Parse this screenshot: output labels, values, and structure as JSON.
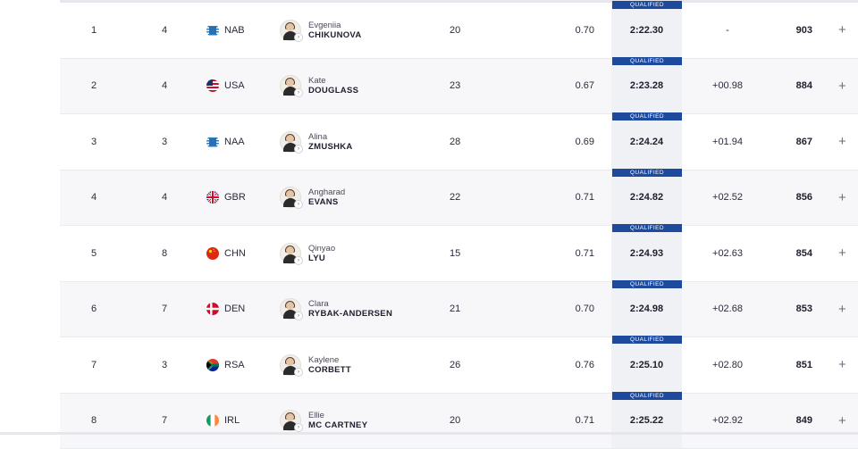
{
  "table": {
    "qualified_label": "QUALIFIED",
    "rows": [
      {
        "rank": "1",
        "lane": "4",
        "country": "NAB",
        "flag": "nab-flag-icon",
        "first": "Evgeniia",
        "last": "CHIKUNOVA",
        "age": "20",
        "rt": "0.70",
        "time": "2:22.30",
        "behind": "-",
        "points": "903"
      },
      {
        "rank": "2",
        "lane": "4",
        "country": "USA",
        "flag": "usa-flag-icon",
        "first": "Kate",
        "last": "DOUGLASS",
        "age": "23",
        "rt": "0.67",
        "time": "2:23.28",
        "behind": "+00.98",
        "points": "884"
      },
      {
        "rank": "3",
        "lane": "3",
        "country": "NAA",
        "flag": "naa-flag-icon",
        "first": "Alina",
        "last": "ZMUSHKA",
        "age": "28",
        "rt": "0.69",
        "time": "2:24.24",
        "behind": "+01.94",
        "points": "867"
      },
      {
        "rank": "4",
        "lane": "4",
        "country": "GBR",
        "flag": "gbr-flag-icon",
        "first": "Angharad",
        "last": "EVANS",
        "age": "22",
        "rt": "0.71",
        "time": "2:24.82",
        "behind": "+02.52",
        "points": "856"
      },
      {
        "rank": "5",
        "lane": "8",
        "country": "CHN",
        "flag": "chn-flag-icon",
        "first": "Qinyao",
        "last": "LYU",
        "age": "15",
        "rt": "0.71",
        "time": "2:24.93",
        "behind": "+02.63",
        "points": "854"
      },
      {
        "rank": "6",
        "lane": "7",
        "country": "DEN",
        "flag": "den-flag-icon",
        "first": "Clara",
        "last": "RYBAK-ANDERSEN",
        "age": "21",
        "rt": "0.70",
        "time": "2:24.98",
        "behind": "+02.68",
        "points": "853"
      },
      {
        "rank": "7",
        "lane": "3",
        "country": "RSA",
        "flag": "rsa-flag-icon",
        "first": "Kaylene",
        "last": "CORBETT",
        "age": "26",
        "rt": "0.76",
        "time": "2:25.10",
        "behind": "+02.80",
        "points": "851"
      },
      {
        "rank": "8",
        "lane": "7",
        "country": "IRL",
        "flag": "irl-flag-icon",
        "first": "Ellie",
        "last": "MC CARTNEY",
        "age": "20",
        "rt": "0.71",
        "time": "2:25.22",
        "behind": "+02.92",
        "points": "849"
      }
    ],
    "expand_symbol": "+"
  }
}
